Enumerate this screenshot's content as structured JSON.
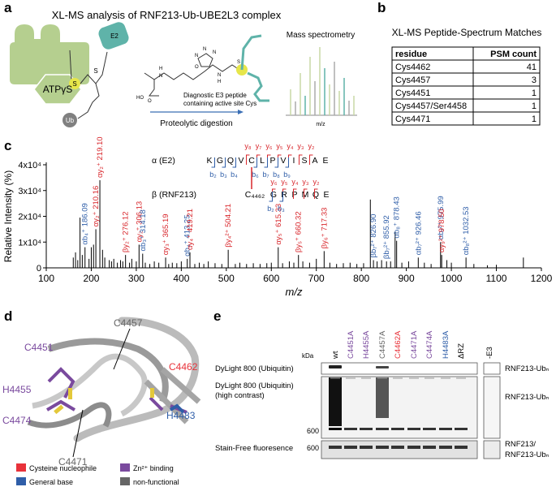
{
  "panel_a": {
    "label": "a",
    "title": "XL-MS analysis of RNF213-Ub-UBE2L3 complex",
    "e2": "E2",
    "s1": "S",
    "s2": "S",
    "atp": "ATPγS",
    "ub": "Ub",
    "chem_labels": [
      "HO",
      "O",
      "H",
      "N",
      "N",
      "N",
      "N",
      "O",
      "N",
      "H",
      "S"
    ],
    "peptide_note": [
      "Diagnostic E3 peptide",
      "containing active site Cys"
    ],
    "digestion": "Proteolytic digestion",
    "ms": "Mass spectrometry",
    "ms_axis": "m/z"
  },
  "panel_b": {
    "label": "b",
    "title": "XL-MS Peptide-Spectrum Matches",
    "table": {
      "header": [
        "residue",
        "PSM count"
      ],
      "rows": [
        [
          "Cys4462",
          41
        ],
        [
          "Cys4457",
          3
        ],
        [
          "Cys4451",
          1
        ],
        [
          "Cys4457/Ser4458",
          1
        ],
        [
          "Cys4471",
          1
        ]
      ]
    }
  },
  "chart_data": {
    "type": "spectrum",
    "panel_label": "c",
    "ylabel": "Relative Intensity (%)",
    "xlabel": "m/z",
    "xlim": [
      100,
      1200
    ],
    "ylim": [
      0,
      40000
    ],
    "xticks": [
      100,
      200,
      300,
      400,
      500,
      600,
      700,
      800,
      900,
      1000,
      1100,
      1200
    ],
    "yticks": [
      0,
      {
        "value": 10000,
        "label": "1x10⁴"
      },
      {
        "value": 20000,
        "label": "2x10⁴"
      },
      {
        "value": 30000,
        "label": "3x10⁴"
      },
      {
        "value": 40000,
        "label": "4x10⁴"
      }
    ],
    "color": "#000000",
    "x": [
      160,
      165,
      170,
      175,
      180,
      195,
      200,
      205,
      225,
      230,
      240,
      245,
      250,
      258,
      265,
      270,
      285,
      290,
      300,
      320,
      330,
      340,
      350,
      372,
      380,
      390,
      400,
      430,
      440,
      450,
      460,
      475,
      490,
      520,
      530,
      545,
      560,
      575,
      590,
      600,
      625,
      640,
      650,
      670,
      685,
      700,
      730,
      745,
      760,
      775,
      790,
      805,
      820,
      835,
      845,
      865,
      875,
      890,
      905,
      940,
      955,
      990,
      1000,
      1050,
      1080,
      1100,
      1160
    ],
    "values": [
      4000,
      6000,
      3000,
      19500,
      5000,
      3500,
      8000,
      9000,
      7000,
      4000,
      3000,
      2500,
      3500,
      2000,
      3000,
      2500,
      2000,
      3500,
      2500,
      2000,
      1500,
      2500,
      2000,
      1500,
      2000,
      1800,
      2500,
      1500,
      2000,
      1500,
      2500,
      1800,
      1500,
      1500,
      2000,
      1500,
      1800,
      1500,
      1800,
      2000,
      1800,
      2500,
      2000,
      2500,
      2000,
      3500,
      2000,
      1500,
      1800,
      2000,
      1500,
      1800,
      26500,
      2500,
      3000,
      2500,
      14000,
      2000,
      2500,
      2000,
      1500,
      3000,
      2000,
      1500,
      1000,
      1200,
      4000
    ],
    "annotations": [
      {
        "x": 186.09,
        "value": 8000,
        "label": "αb₄⁺ 186.09",
        "color": "#2f5ea8"
      },
      {
        "x": 210.16,
        "value": 15000,
        "label": "αy₂⁺ 210.16",
        "color": "#d8262b"
      },
      {
        "x": 219.1,
        "value": 34000,
        "label": "αy₂⁺ 219.10",
        "color": "#d8262b"
      },
      {
        "x": 276.12,
        "value": 5000,
        "label": "βy₂⁺ 276.12",
        "color": "#d8262b"
      },
      {
        "x": 306.13,
        "value": 9000,
        "label": "αy₂⁺ 306.13",
        "color": "#d8262b"
      },
      {
        "x": 314.18,
        "value": 5500,
        "label": "αb₃⁺ 314.18",
        "color": "#2f5ea8"
      },
      {
        "x": 365.19,
        "value": 4000,
        "label": "αy₃⁺ 365.19",
        "color": "#d8262b"
      },
      {
        "x": 413.25,
        "value": 3500,
        "label": "αb₄⁺ 413.25",
        "color": "#2f5ea8"
      },
      {
        "x": 419.21,
        "value": 6000,
        "label": "αy₄⁺ 419.21",
        "color": "#d8262b"
      },
      {
        "x": 504.21,
        "value": 7000,
        "label": "βy₄²⁺ 504.21",
        "color": "#d8262b"
      },
      {
        "x": 615.33,
        "value": 8000,
        "label": "αy₅⁺ 615.33",
        "color": "#d8262b"
      },
      {
        "x": 660.32,
        "value": 5000,
        "label": "βy₅⁺ 660.32",
        "color": "#d8262b"
      },
      {
        "x": 717.33,
        "value": 6500,
        "label": "βy₆⁺ 717.33",
        "color": "#d8262b"
      },
      {
        "x": 826.9,
        "value": 3000,
        "label": "βb₇²⁺ 826.90",
        "color": "#2f5ea8"
      },
      {
        "x": 855.92,
        "value": 2500,
        "label": "βb₇²⁺ 855.92",
        "color": "#2f5ea8"
      },
      {
        "x": 878.43,
        "value": 10500,
        "label": "αb₈⁺ 878.43",
        "color": "#2f5ea8"
      },
      {
        "x": 926.46,
        "value": 4000,
        "label": "αb₇²⁺ 926.46",
        "color": "#2f5ea8"
      },
      {
        "x": 975.99,
        "value": 10000,
        "label": "αb₇²⁺ 975.99",
        "color": "#2f5ea8"
      },
      {
        "x": 978.5,
        "value": 5000,
        "label": "αy₉²⁺ 978.50",
        "color": "#d8262b"
      },
      {
        "x": 1032.53,
        "value": 4000,
        "label": "αb₈²⁺ 1032.53",
        "color": "#2f5ea8"
      }
    ],
    "peptides": [
      {
        "name": "α (E2)",
        "sequence": [
          "K",
          "G",
          "Q",
          "V",
          "C",
          "L",
          "P",
          "V",
          "I",
          "S",
          "A",
          "E"
        ],
        "y_ions": [
          "y₈",
          "y₇",
          "y₆",
          "y₅",
          "y₄",
          "y₃",
          "y₂"
        ],
        "b_ions": [
          "b₂",
          "b₃",
          "b₄",
          "b₆",
          "b₇",
          "b₈",
          "b₉"
        ]
      },
      {
        "name": "β (RNF213)",
        "sequence": [
          "C₄₄₆₂",
          "G",
          "R",
          "P",
          "M",
          "Q",
          "E"
        ],
        "y_ions": [
          "y₆",
          "y₅",
          "y₄",
          "y₃",
          "y₂"
        ],
        "b_ions": [
          "b₂",
          "b₃"
        ]
      }
    ]
  },
  "panel_d": {
    "label": "d",
    "residues": [
      "C4457",
      "C4451",
      "C4462",
      "H4455",
      "C4474",
      "H4483",
      "C4471"
    ],
    "legend": [
      "Cysteine nucleophile",
      "Zn²⁺ binding",
      "General base",
      "non-functional"
    ]
  },
  "panel_e": {
    "label": "e",
    "kda": "kDa",
    "lanes": [
      "wt",
      "C4451A",
      "H4455A",
      "C4457A",
      "C4462A",
      "C4471A",
      "C4474A",
      "H4483A",
      "ΔRZ",
      "-E3"
    ],
    "rows": [
      "DyLight 800 (Ubiquitin)",
      "DyLight 800 (Ubiquitin)",
      "(high contrast)",
      "Stain-Free fluoresence"
    ],
    "markers": [
      "600",
      "600"
    ],
    "right_labels": [
      "RNF213-Ubₙ",
      "RNF213-Ubₙ",
      "RNF213/",
      "RNF213-Ubₙ"
    ]
  }
}
